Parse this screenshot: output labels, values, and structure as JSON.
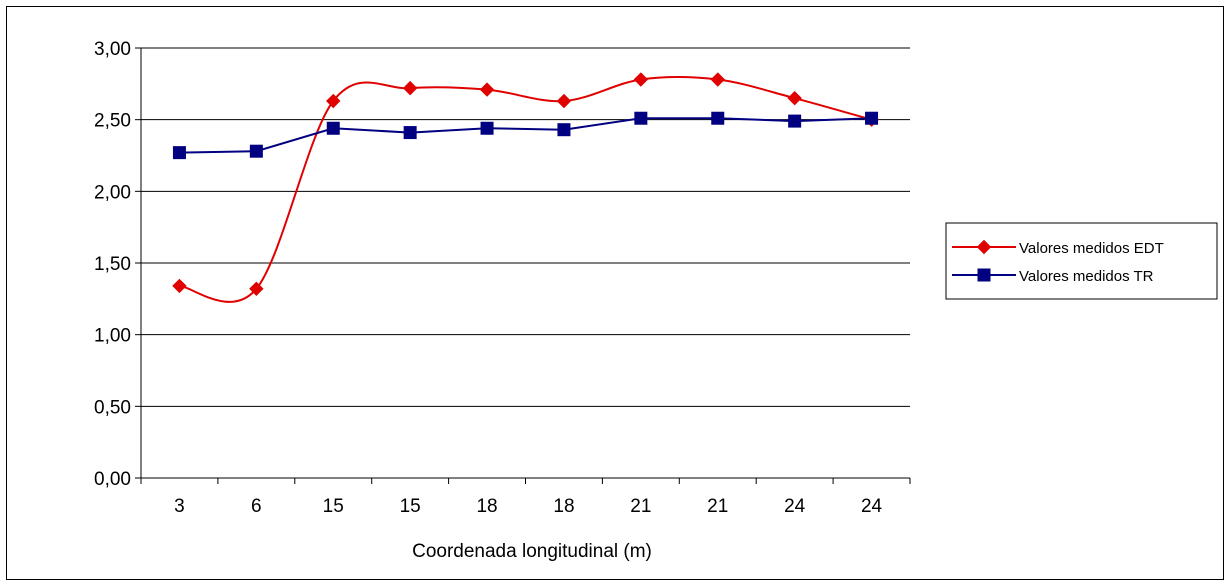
{
  "chart_data": {
    "type": "line",
    "categories": [
      "3",
      "6",
      "15",
      "15",
      "18",
      "18",
      "21",
      "21",
      "24",
      "24"
    ],
    "series": [
      {
        "name": "Valores medidos EDT",
        "color": "#e00000",
        "marker": "diamond",
        "smooth": true,
        "values": [
          1.34,
          1.32,
          2.63,
          2.72,
          2.71,
          2.63,
          2.78,
          2.78,
          2.65,
          2.5
        ]
      },
      {
        "name": "Valores medidos TR",
        "color": "#000080",
        "marker": "square",
        "smooth": false,
        "values": [
          2.27,
          2.28,
          2.44,
          2.41,
          2.44,
          2.43,
          2.51,
          2.51,
          2.49,
          2.51
        ]
      }
    ],
    "xlabel": "Coordenada longitudinal (m)",
    "ylabel": "",
    "ylim": [
      0,
      3
    ],
    "yticks": [
      0,
      0.5,
      1,
      1.5,
      2,
      2.5,
      3
    ],
    "ytick_labels": [
      "0,00",
      "0,50",
      "1,00",
      "1,50",
      "2,00",
      "2,50",
      "3,00"
    ],
    "grid": true,
    "legend_position": "right"
  }
}
